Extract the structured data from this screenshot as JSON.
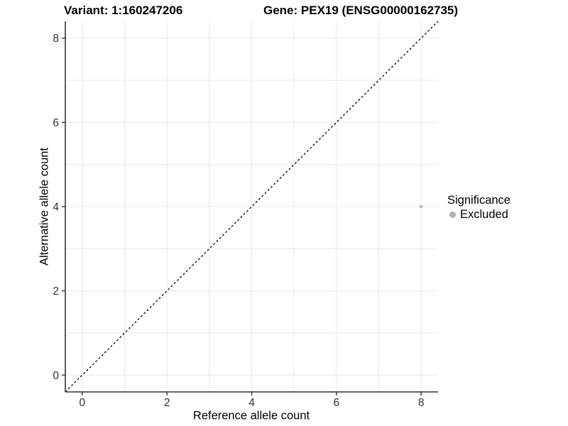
{
  "header": {
    "variant_title": "Variant: 1:160247206",
    "gene_title": "Gene: PEX19 (ENSG00000162735)"
  },
  "legend": {
    "title": "Significance",
    "items": [
      {
        "label": "Excluded",
        "color": "#b3b3b3"
      }
    ]
  },
  "colors": {
    "background": "#ffffff",
    "grid": "#e8e8e8",
    "axis": "#333333",
    "tick_text": "#303030",
    "dashed_line": "#000000",
    "point": "#b3b3b3"
  },
  "chart_data": {
    "type": "scatter",
    "title": "Variant: 1:160247206 / Gene: PEX19 (ENSG00000162735)",
    "xlabel": "Reference allele count",
    "ylabel": "Alternative allele count",
    "xlim": [
      -0.4,
      8.4
    ],
    "ylim": [
      -0.4,
      8.4
    ],
    "xticks": [
      0,
      2,
      4,
      6,
      8
    ],
    "yticks": [
      0,
      2,
      4,
      6,
      8
    ],
    "grid": {
      "on": true,
      "every": 1
    },
    "reference_line": {
      "slope": 1,
      "intercept": 0,
      "style": "dashed",
      "color": "#000000"
    },
    "series": [
      {
        "name": "Excluded",
        "color": "#b3b3b3",
        "points": [
          {
            "x": 8,
            "y": 4
          }
        ]
      }
    ],
    "legend_position": "right"
  }
}
